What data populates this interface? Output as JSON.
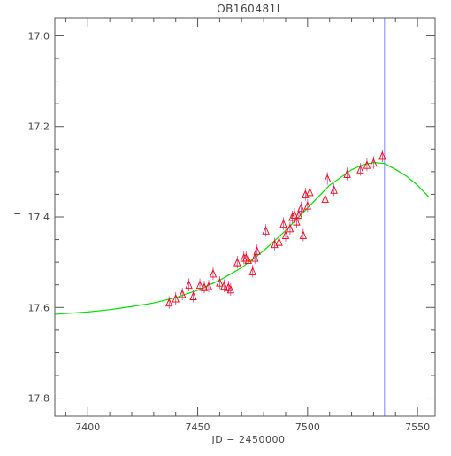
{
  "chart_data": {
    "type": "scatter",
    "title": "OB160481I",
    "xlabel": "JD − 2450000",
    "ylabel": "−",
    "xlim": [
      7385,
      7558
    ],
    "ylim": [
      17.84,
      16.96
    ],
    "y_inverted": true,
    "x_ticks": [
      7400,
      7450,
      7500,
      7550
    ],
    "y_ticks": [
      17.0,
      17.2,
      17.4,
      17.6,
      17.8
    ],
    "y_tick_labels": [
      "17.0",
      "17.2",
      "17.4",
      "17.6",
      "17.8"
    ],
    "grid": false,
    "vertical_marker_x": 7535,
    "series": [
      {
        "kind": "points",
        "marker": "triangle",
        "color": "#ff0000",
        "errorbar_color": "#c040c0",
        "x": [
          7437,
          7440,
          7443,
          7446,
          7448,
          7451,
          7453,
          7455,
          7457,
          7460,
          7462,
          7464,
          7465,
          7468,
          7471,
          7472,
          7473,
          7475,
          7476,
          7477,
          7481,
          7485,
          7487,
          7489,
          7490,
          7492,
          7493,
          7494,
          7495,
          7496,
          7497,
          7498,
          7499,
          7500,
          7501,
          7508,
          7509,
          7512,
          7518,
          7524,
          7527,
          7530,
          7534
        ],
        "y": [
          17.589,
          17.58,
          17.57,
          17.55,
          17.575,
          17.55,
          17.555,
          17.553,
          17.525,
          17.545,
          17.552,
          17.555,
          17.56,
          17.5,
          17.49,
          17.49,
          17.495,
          17.52,
          17.49,
          17.475,
          17.43,
          17.46,
          17.455,
          17.415,
          17.44,
          17.425,
          17.4,
          17.395,
          17.41,
          17.395,
          17.38,
          17.44,
          17.35,
          17.375,
          17.345,
          17.36,
          17.315,
          17.34,
          17.305,
          17.295,
          17.285,
          17.28,
          17.265
        ],
        "err": [
          0.014,
          0.014,
          0.014,
          0.014,
          0.014,
          0.014,
          0.014,
          0.014,
          0.014,
          0.014,
          0.014,
          0.014,
          0.014,
          0.014,
          0.014,
          0.014,
          0.014,
          0.014,
          0.014,
          0.014,
          0.014,
          0.014,
          0.014,
          0.014,
          0.014,
          0.014,
          0.014,
          0.014,
          0.014,
          0.014,
          0.014,
          0.014,
          0.014,
          0.014,
          0.014,
          0.014,
          0.014,
          0.014,
          0.014,
          0.014,
          0.014,
          0.014,
          0.014
        ]
      },
      {
        "kind": "line",
        "color": "#00e000",
        "x": [
          7385,
          7400,
          7410,
          7420,
          7430,
          7440,
          7450,
          7460,
          7470,
          7480,
          7490,
          7500,
          7510,
          7520,
          7525,
          7530,
          7535,
          7540,
          7545,
          7550,
          7555
        ],
        "y": [
          17.615,
          17.61,
          17.605,
          17.598,
          17.59,
          17.578,
          17.562,
          17.54,
          17.512,
          17.475,
          17.43,
          17.38,
          17.33,
          17.296,
          17.285,
          17.28,
          17.282,
          17.295,
          17.31,
          17.33,
          17.355
        ]
      }
    ]
  }
}
